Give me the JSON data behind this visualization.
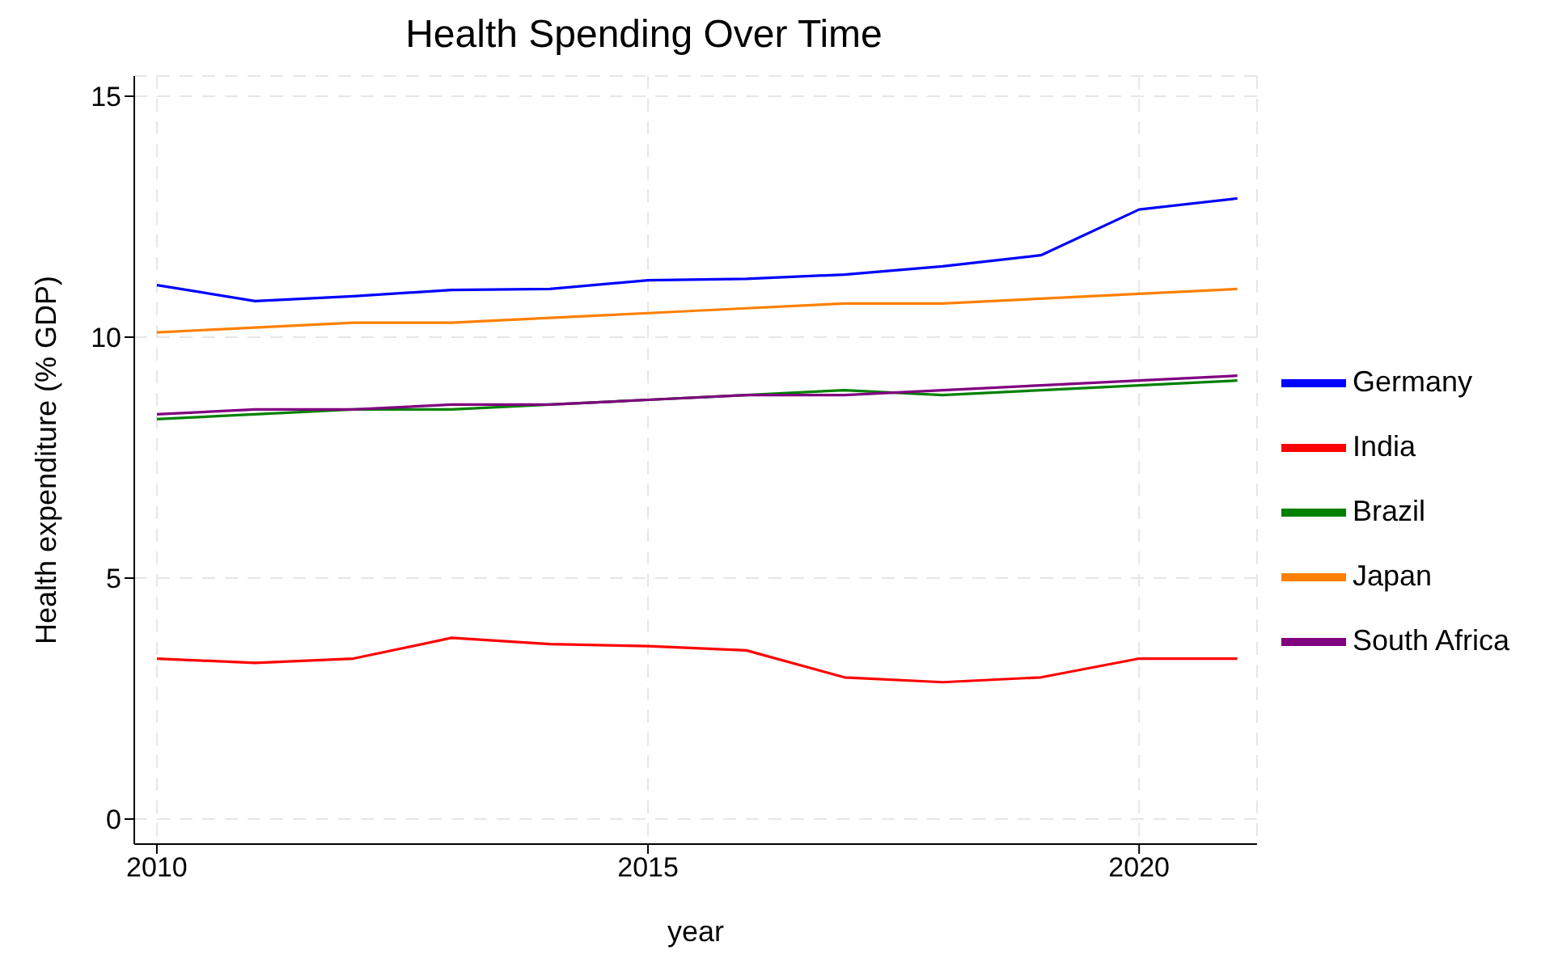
{
  "chart_data": {
    "type": "line",
    "title": "Health Spending Over Time",
    "xlabel": "year",
    "ylabel": "Health expenditure (% GDP)",
    "x": [
      2010,
      2011,
      2012,
      2013,
      2014,
      2015,
      2016,
      2017,
      2018,
      2019,
      2020,
      2021
    ],
    "series": [
      {
        "name": "Germany",
        "color": "#0000ff",
        "values": [
          11.08,
          10.75,
          10.85,
          10.98,
          11.0,
          11.18,
          11.21,
          11.3,
          11.47,
          11.7,
          12.65,
          12.88
        ]
      },
      {
        "name": "India",
        "color": "#ff0000",
        "values": [
          3.33,
          3.24,
          3.33,
          3.76,
          3.63,
          3.59,
          3.5,
          2.94,
          2.84,
          2.94,
          3.33,
          3.33
        ]
      },
      {
        "name": "Brazil",
        "color": "#008000",
        "values": [
          8.3,
          8.4,
          8.5,
          8.5,
          8.6,
          8.7,
          8.8,
          8.9,
          8.8,
          8.9,
          9.0,
          9.1
        ]
      },
      {
        "name": "Japan",
        "color": "#ff8000",
        "values": [
          10.1,
          10.2,
          10.3,
          10.3,
          10.4,
          10.5,
          10.6,
          10.7,
          10.7,
          10.8,
          10.9,
          11.0
        ]
      },
      {
        "name": "South Africa",
        "color": "#800080",
        "values": [
          8.4,
          8.5,
          8.5,
          8.6,
          8.6,
          8.7,
          8.8,
          8.8,
          8.9,
          9.0,
          9.1,
          9.2
        ]
      }
    ],
    "xlim": [
      2009.77,
      2021.2
    ],
    "xticks": [
      2010,
      2015,
      2020
    ],
    "ylim": [
      -0.52,
      15.42
    ],
    "yticks": [
      0,
      5,
      10,
      15
    ],
    "grid": true,
    "legend": "right",
    "marker": "none",
    "line_style": "solid"
  }
}
